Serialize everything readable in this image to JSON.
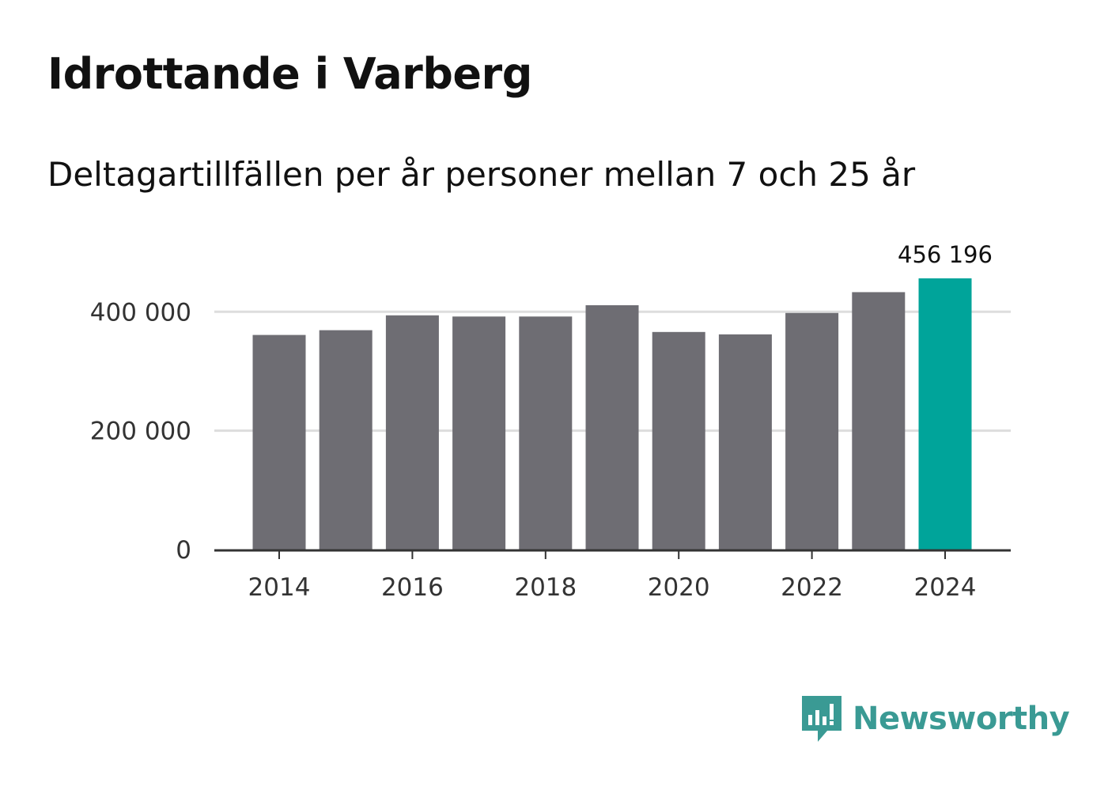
{
  "header": {
    "title": "Idrottande i Varberg",
    "subtitle": "Deltagartillfällen per år personer mellan 7 och 25 år"
  },
  "brand": {
    "name": "Newsworthy",
    "color": "#3a9a94",
    "icon": "newsworthy-logo-icon"
  },
  "colors": {
    "bar": "#6e6d73",
    "highlight": "#00a49a",
    "grid": "#dddddd",
    "axis": "#333333"
  },
  "chart_data": {
    "type": "bar",
    "title": "Idrottande i Varberg",
    "subtitle": "Deltagartillfällen per år personer mellan 7 och 25 år",
    "xlabel": "",
    "ylabel": "",
    "categories": [
      "2014",
      "2015",
      "2016",
      "2017",
      "2018",
      "2019",
      "2020",
      "2021",
      "2022",
      "2023",
      "2024"
    ],
    "values": [
      361000,
      369000,
      394000,
      392000,
      392000,
      411000,
      366000,
      362000,
      398000,
      433000,
      456196
    ],
    "highlight_index": 10,
    "data_labels": [
      {
        "index": 10,
        "text": "456 196"
      }
    ],
    "y_ticks": [
      {
        "value": 0,
        "label": "0"
      },
      {
        "value": 200000,
        "label": "200 000"
      },
      {
        "value": 400000,
        "label": "400 000"
      }
    ],
    "x_tick_labels": [
      "2014",
      "2016",
      "2018",
      "2020",
      "2022",
      "2024"
    ],
    "ylim": [
      0,
      456196
    ],
    "grid": true,
    "legend": "none"
  }
}
